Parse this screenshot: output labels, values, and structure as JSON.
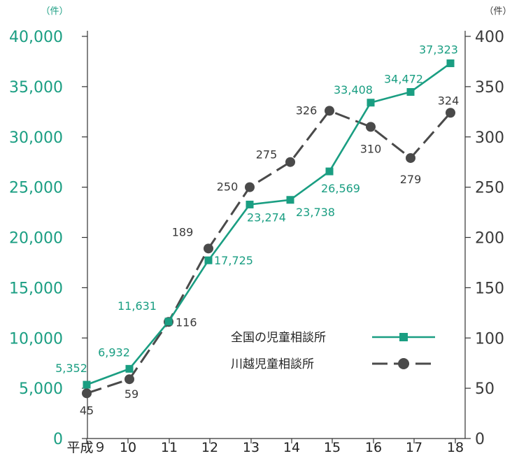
{
  "chart_data": {
    "type": "line",
    "categories": [
      "平成９",
      "10",
      "11",
      "12",
      "13",
      "14",
      "15",
      "16",
      "17",
      "18"
    ],
    "y_left": {
      "unit": "（件）",
      "ylim": [
        0,
        40000
      ],
      "ticks": [
        "0",
        "5,000",
        "10,000",
        "15,000",
        "20,000",
        "25,000",
        "30,000",
        "35,000",
        "40,000"
      ]
    },
    "y_right": {
      "unit": "（件）",
      "ylim": [
        0,
        400
      ],
      "ticks": [
        "0",
        "50",
        "100",
        "150",
        "200",
        "250",
        "300",
        "350",
        "400"
      ]
    },
    "grid": false,
    "legend_position": "center-right",
    "series": [
      {
        "name": "全国の児童相談所",
        "axis": "left",
        "color": "#1a9e82",
        "marker": "square",
        "line_style": "solid",
        "values": [
          5352,
          6932,
          11631,
          17725,
          23274,
          23738,
          26569,
          33408,
          34472,
          37323
        ],
        "labels": [
          "5,352",
          "6,932",
          "11,631",
          "17,725",
          "23,274",
          "23,738",
          "26,569",
          "33,408",
          "34,472",
          "37,323"
        ]
      },
      {
        "name": "川越児童相談所",
        "axis": "right",
        "color": "#4a4a4a",
        "marker": "circle",
        "line_style": "dashed",
        "values": [
          45,
          59,
          116,
          189,
          250,
          275,
          326,
          310,
          279,
          324
        ],
        "labels": [
          "45",
          "59",
          "116",
          "189",
          "250",
          "275",
          "326",
          "310",
          "279",
          "324"
        ]
      }
    ]
  }
}
